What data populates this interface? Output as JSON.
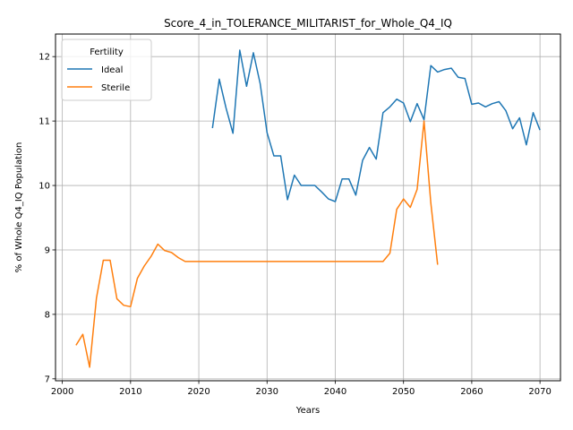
{
  "chart_data": {
    "type": "line",
    "title": "Score_4_in_TOLERANCE_MILITARIST_for_Whole_Q4_IQ",
    "xlabel": "Years",
    "ylabel": "% of Whole Q4_IQ Population",
    "xlim": [
      1999,
      2073
    ],
    "ylim": [
      6.97,
      12.35
    ],
    "xticks": [
      2000,
      2010,
      2020,
      2030,
      2040,
      2050,
      2060,
      2070
    ],
    "yticks": [
      7,
      8,
      9,
      10,
      11,
      12
    ],
    "grid": true,
    "legend": {
      "title": "Fertility",
      "position": "top-left"
    },
    "series": [
      {
        "name": "Ideal",
        "color": "#1f77b4",
        "x": [
          2022,
          2023,
          2024,
          2025,
          2026,
          2027,
          2028,
          2029,
          2030,
          2031,
          2032,
          2033,
          2034,
          2035,
          2036,
          2037,
          2038,
          2039,
          2040,
          2041,
          2042,
          2043,
          2044,
          2045,
          2046,
          2047,
          2048,
          2049,
          2050,
          2051,
          2052,
          2053,
          2054,
          2055,
          2056,
          2057,
          2058,
          2059,
          2060,
          2061,
          2062,
          2063,
          2064,
          2065,
          2066,
          2067,
          2068,
          2069,
          2070
        ],
        "y": [
          10.89,
          11.65,
          11.2,
          10.81,
          12.1,
          11.54,
          12.06,
          11.58,
          10.82,
          10.46,
          10.46,
          9.78,
          10.16,
          10.0,
          10.0,
          10.0,
          9.9,
          9.79,
          9.75,
          10.1,
          10.1,
          9.85,
          10.39,
          10.59,
          10.41,
          11.13,
          11.22,
          11.34,
          11.28,
          10.99,
          11.27,
          11.02,
          11.86,
          11.76,
          11.8,
          11.82,
          11.68,
          11.66,
          11.26,
          11.28,
          11.22,
          11.27,
          11.3,
          11.16,
          10.88,
          11.05,
          10.63,
          11.13,
          10.86
        ]
      },
      {
        "name": "Sterile",
        "color": "#ff7f0e",
        "x": [
          2002,
          2003,
          2004,
          2005,
          2006,
          2007,
          2008,
          2009,
          2010,
          2011,
          2012,
          2013,
          2014,
          2015,
          2016,
          2017,
          2018,
          2019,
          2020,
          2021,
          2022,
          2023,
          2024,
          2025,
          2026,
          2027,
          2028,
          2029,
          2030,
          2031,
          2032,
          2033,
          2034,
          2035,
          2036,
          2037,
          2038,
          2039,
          2040,
          2041,
          2042,
          2043,
          2044,
          2045,
          2046,
          2047,
          2048,
          2049,
          2050,
          2051,
          2052,
          2053,
          2054,
          2055
        ],
        "y": [
          7.52,
          7.69,
          7.18,
          8.25,
          8.84,
          8.84,
          8.24,
          8.14,
          8.12,
          8.56,
          8.75,
          8.9,
          9.09,
          8.99,
          8.96,
          8.88,
          8.82,
          8.82,
          8.82,
          8.82,
          8.82,
          8.82,
          8.82,
          8.82,
          8.82,
          8.82,
          8.82,
          8.82,
          8.82,
          8.82,
          8.82,
          8.82,
          8.82,
          8.82,
          8.82,
          8.82,
          8.82,
          8.82,
          8.82,
          8.82,
          8.82,
          8.82,
          8.82,
          8.82,
          8.82,
          8.82,
          8.95,
          9.63,
          9.79,
          9.66,
          9.94,
          11.0,
          9.73,
          8.77
        ]
      }
    ]
  }
}
